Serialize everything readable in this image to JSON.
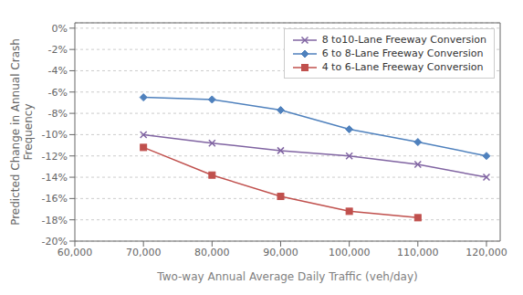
{
  "chart_data": {
    "type": "line",
    "x_label": "Two-way Annual Average Daily Traffic (veh/day)",
    "y_label": "Predicted Change in Annual Crash\nFrequency",
    "x": [
      70000,
      80000,
      90000,
      100000,
      110000,
      120000
    ],
    "series": [
      {
        "name": "8 to10-Lane Freeway Conversion",
        "color": "#8064A2",
        "marker": "x",
        "values": [
          -0.1,
          -0.108,
          -0.115,
          -0.12,
          -0.128,
          -0.14
        ]
      },
      {
        "name": "6 to 8-Lane Freeway Conversion",
        "color": "#4F81BD",
        "marker": "diamond",
        "values": [
          -0.065,
          -0.067,
          -0.077,
          -0.095,
          -0.107,
          -0.12
        ]
      },
      {
        "name": "4 to 6-Lane Freeway Conversion",
        "color": "#C0504D",
        "marker": "square",
        "values": [
          -0.112,
          -0.138,
          -0.158,
          -0.172,
          -0.178,
          null
        ]
      }
    ],
    "xlim": [
      60000,
      122000
    ],
    "ylim": [
      -0.2,
      0.005
    ],
    "xticks": [
      {
        "value": 60000,
        "label": "60,000"
      },
      {
        "value": 70000,
        "label": "70,000"
      },
      {
        "value": 80000,
        "label": "80,000"
      },
      {
        "value": 90000,
        "label": "90,000"
      },
      {
        "value": 100000,
        "label": "100,000"
      },
      {
        "value": 110000,
        "label": "110,000"
      },
      {
        "value": 120000,
        "label": "120,000"
      }
    ],
    "yticks": [
      {
        "value": 0.0,
        "label": "0%"
      },
      {
        "value": -0.02,
        "label": "-2%"
      },
      {
        "value": -0.04,
        "label": "-4%"
      },
      {
        "value": -0.06,
        "label": "-6%"
      },
      {
        "value": -0.08,
        "label": "-8%"
      },
      {
        "value": -0.1,
        "label": "-10%"
      },
      {
        "value": -0.12,
        "label": "-12%"
      },
      {
        "value": -0.14,
        "label": "-14%"
      },
      {
        "value": -0.16,
        "label": "-16%"
      },
      {
        "value": -0.18,
        "label": "-18%"
      },
      {
        "value": -0.2,
        "label": "-20%"
      }
    ],
    "grid": "y",
    "legend": "upper right"
  }
}
